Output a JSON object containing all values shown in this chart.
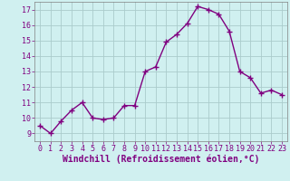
{
  "x": [
    0,
    1,
    2,
    3,
    4,
    5,
    6,
    7,
    8,
    9,
    10,
    11,
    12,
    13,
    14,
    15,
    16,
    17,
    18,
    19,
    20,
    21,
    22,
    23
  ],
  "y": [
    9.5,
    9.0,
    9.8,
    10.5,
    11.0,
    10.0,
    9.9,
    10.0,
    10.8,
    10.8,
    13.0,
    13.3,
    14.9,
    15.4,
    16.1,
    17.2,
    17.0,
    16.7,
    15.6,
    13.0,
    12.6,
    11.6,
    11.8,
    11.5
  ],
  "line_color": "#800080",
  "marker": "+",
  "marker_size": 4,
  "line_width": 1.0,
  "bg_color": "#d0f0f0",
  "grid_color": "#aacccc",
  "xlabel": "Windchill (Refroidissement éolien,°C)",
  "xlabel_color": "#800080",
  "xlabel_fontsize": 7,
  "tick_color": "#800080",
  "tick_fontsize": 6,
  "ylim": [
    8.5,
    17.5
  ],
  "xlim": [
    -0.5,
    23.5
  ],
  "yticks": [
    9,
    10,
    11,
    12,
    13,
    14,
    15,
    16,
    17
  ],
  "xtick_labels": [
    "0",
    "1",
    "2",
    "3",
    "4",
    "5",
    "6",
    "7",
    "8",
    "9",
    "10",
    "11",
    "12",
    "13",
    "14",
    "15",
    "16",
    "17",
    "18",
    "19",
    "20",
    "21",
    "22",
    "23"
  ]
}
